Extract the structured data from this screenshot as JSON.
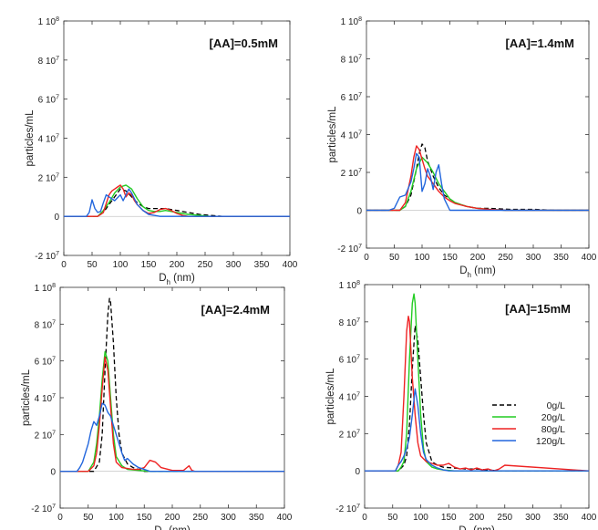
{
  "chart_data": [
    {
      "type": "line",
      "label": "[AA]=0.5mM",
      "xlabel": "D_h (nm)",
      "ylabel": "particles/mL",
      "xlim": [
        0,
        400
      ],
      "ylim": [
        -20000000,
        100000000
      ],
      "xticks": [
        0,
        50,
        100,
        150,
        200,
        250,
        300,
        350,
        400
      ],
      "ytick_labels": [
        "1 10^8",
        "8 10^7",
        "6 10^7",
        "4 10^7",
        "2 10^7",
        "0",
        "-2 10^7"
      ],
      "series": [
        {
          "name": "0g/L",
          "color": "#000000",
          "dash": true,
          "x": [
            0,
            60,
            70,
            80,
            90,
            100,
            110,
            120,
            130,
            140,
            150,
            160,
            170,
            180,
            200,
            220,
            240,
            260,
            280,
            400
          ],
          "y": [
            0,
            0,
            2000000,
            6000000,
            10000000,
            14000000,
            13000000,
            10000000,
            7000000,
            5000000,
            4000000,
            4000000,
            4000000,
            4000000,
            3000000,
            2000000,
            1000000,
            500000,
            0,
            0
          ]
        },
        {
          "name": "20g/L",
          "color": "#22cc22",
          "dash": false,
          "x": [
            0,
            60,
            70,
            80,
            90,
            100,
            110,
            120,
            130,
            140,
            150,
            160,
            170,
            180,
            190,
            200,
            210,
            220,
            240,
            260,
            400
          ],
          "y": [
            0,
            0,
            3000000,
            7000000,
            12000000,
            15000000,
            16000000,
            14000000,
            9000000,
            5000000,
            3000000,
            2500000,
            2500000,
            3000000,
            2500000,
            2000000,
            1500000,
            1000000,
            500000,
            0,
            0
          ]
        },
        {
          "name": "80g/L",
          "color": "#ee2222",
          "dash": false,
          "x": [
            0,
            60,
            70,
            80,
            85,
            90,
            95,
            100,
            105,
            110,
            115,
            120,
            125,
            130,
            140,
            150,
            160,
            170,
            180,
            190,
            200,
            210,
            220,
            400
          ],
          "y": [
            0,
            0,
            2000000,
            11000000,
            13000000,
            14000000,
            15000000,
            16000000,
            14000000,
            10000000,
            12000000,
            11000000,
            8000000,
            6000000,
            3000000,
            1500000,
            2000000,
            3500000,
            4000000,
            3000000,
            1500000,
            500000,
            0,
            0
          ]
        },
        {
          "name": "120g/L",
          "color": "#2266dd",
          "dash": false,
          "x": [
            0,
            40,
            45,
            50,
            55,
            60,
            65,
            70,
            75,
            80,
            90,
            100,
            105,
            110,
            115,
            120,
            125,
            130,
            140,
            150,
            160,
            170,
            400
          ],
          "y": [
            0,
            0,
            2000000,
            8500000,
            4000000,
            2000000,
            2500000,
            7000000,
            11000000,
            10000000,
            8000000,
            11000000,
            8000000,
            11000000,
            14000000,
            12000000,
            9000000,
            6000000,
            3000000,
            1000000,
            500000,
            0,
            0
          ]
        }
      ]
    },
    {
      "type": "line",
      "label": "[AA]=1.4mM",
      "xlabel": "D_h (nm)",
      "ylabel": "particles/mL",
      "xlim": [
        0,
        400
      ],
      "ylim": [
        -20000000,
        100000000
      ],
      "xticks": [
        0,
        50,
        100,
        150,
        200,
        250,
        300,
        350,
        400
      ],
      "ytick_labels": [
        "1 10^8",
        "8 10^7",
        "6 10^7",
        "4 10^7",
        "2 10^7",
        "0",
        "-2 10^7"
      ],
      "series": [
        {
          "name": "0g/L",
          "color": "#000000",
          "dash": true,
          "x": [
            0,
            60,
            70,
            80,
            90,
            95,
            100,
            105,
            110,
            120,
            130,
            140,
            150,
            160,
            180,
            200,
            220,
            260,
            300,
            340,
            400
          ],
          "y": [
            0,
            0,
            2000000,
            8000000,
            22000000,
            30000000,
            35000000,
            33000000,
            26000000,
            18000000,
            12000000,
            8000000,
            6000000,
            4000000,
            2000000,
            1000000,
            1000000,
            500000,
            500000,
            0,
            0
          ]
        },
        {
          "name": "20g/L",
          "color": "#22cc22",
          "dash": false,
          "x": [
            0,
            60,
            70,
            80,
            90,
            100,
            110,
            120,
            130,
            140,
            150,
            160,
            180,
            200,
            220,
            250,
            400
          ],
          "y": [
            0,
            0,
            2000000,
            10000000,
            22000000,
            28000000,
            25000000,
            20000000,
            14000000,
            10000000,
            6000000,
            4000000,
            2000000,
            1000000,
            500000,
            0,
            0
          ]
        },
        {
          "name": "80g/L",
          "color": "#ee2222",
          "dash": false,
          "x": [
            0,
            60,
            70,
            80,
            85,
            90,
            95,
            100,
            105,
            110,
            120,
            130,
            140,
            150,
            160,
            180,
            200,
            220,
            250,
            400
          ],
          "y": [
            0,
            0,
            4000000,
            18000000,
            28000000,
            34000000,
            32000000,
            27000000,
            22000000,
            18000000,
            14000000,
            10000000,
            7000000,
            5000000,
            3500000,
            2000000,
            1000000,
            500000,
            0,
            0
          ]
        },
        {
          "name": "120g/L",
          "color": "#2266dd",
          "dash": false,
          "x": [
            0,
            40,
            50,
            60,
            70,
            80,
            85,
            90,
            95,
            100,
            105,
            110,
            115,
            120,
            125,
            130,
            135,
            140,
            150,
            400
          ],
          "y": [
            0,
            0,
            1000000,
            7000000,
            8000000,
            15000000,
            22000000,
            30000000,
            28000000,
            10000000,
            14000000,
            22000000,
            18000000,
            11000000,
            20000000,
            24000000,
            14000000,
            6000000,
            0,
            0
          ]
        }
      ]
    },
    {
      "type": "line",
      "label": "[AA]=2.4mM",
      "xlabel": "D_h (nm)",
      "ylabel": "particles/mL",
      "xlim": [
        0,
        400
      ],
      "ylim": [
        -20000000,
        100000000
      ],
      "xticks": [
        0,
        50,
        100,
        150,
        200,
        250,
        300,
        350,
        400
      ],
      "ytick_labels": [
        "1 10^8",
        "8 10^7",
        "6 10^7",
        "4 10^7",
        "2 10^7",
        "0",
        "-2 10^7"
      ],
      "series": [
        {
          "name": "0g/L",
          "color": "#000000",
          "dash": true,
          "x": [
            0,
            60,
            70,
            75,
            80,
            85,
            88,
            90,
            95,
            100,
            105,
            110,
            120,
            130,
            140,
            150,
            400
          ],
          "y": [
            0,
            0,
            5000000,
            20000000,
            55000000,
            85000000,
            94000000,
            92000000,
            70000000,
            40000000,
            20000000,
            10000000,
            4000000,
            2000000,
            1000000,
            0,
            0
          ]
        },
        {
          "name": "20g/L",
          "color": "#22cc22",
          "dash": false,
          "x": [
            0,
            50,
            60,
            65,
            70,
            75,
            80,
            85,
            90,
            95,
            100,
            110,
            120,
            140,
            160,
            400
          ],
          "y": [
            0,
            0,
            5000000,
            15000000,
            30000000,
            50000000,
            65000000,
            60000000,
            40000000,
            20000000,
            8000000,
            3000000,
            1000000,
            500000,
            0,
            0
          ]
        },
        {
          "name": "80g/L",
          "color": "#ee2222",
          "dash": false,
          "x": [
            0,
            50,
            60,
            65,
            70,
            75,
            80,
            85,
            90,
            95,
            100,
            110,
            120,
            130,
            140,
            150,
            160,
            170,
            180,
            200,
            220,
            230,
            235,
            240,
            400
          ],
          "y": [
            0,
            0,
            3000000,
            10000000,
            25000000,
            45000000,
            62000000,
            55000000,
            35000000,
            15000000,
            5000000,
            2000000,
            1500000,
            1000000,
            1000000,
            2000000,
            6000000,
            5000000,
            2000000,
            500000,
            500000,
            3000000,
            500000,
            0,
            0
          ]
        },
        {
          "name": "120g/L",
          "color": "#2266dd",
          "dash": false,
          "x": [
            0,
            30,
            35,
            40,
            45,
            50,
            55,
            60,
            65,
            70,
            75,
            80,
            85,
            90,
            95,
            100,
            105,
            110,
            115,
            120,
            130,
            140,
            150,
            160,
            400
          ],
          "y": [
            0,
            0,
            2000000,
            5000000,
            10000000,
            15000000,
            22000000,
            27000000,
            25000000,
            30000000,
            37000000,
            36000000,
            32000000,
            30000000,
            25000000,
            20000000,
            15000000,
            10000000,
            6000000,
            7000000,
            4000000,
            2000000,
            1000000,
            0,
            0
          ]
        }
      ]
    },
    {
      "type": "line",
      "label": "[AA]=15mM",
      "xlabel": "D_h (nm)",
      "ylabel": "particles/mL",
      "xlim": [
        0,
        400
      ],
      "ylim": [
        -20000000,
        100000000
      ],
      "xticks": [
        0,
        50,
        100,
        150,
        200,
        250,
        300,
        350,
        400
      ],
      "ytick_labels": [
        "1 10^8",
        "8 10^7",
        "6 10^7",
        "4 10^7",
        "2 10^7",
        "0",
        "-2 10^7"
      ],
      "legend": [
        "0g/L",
        "20g/L",
        "80g/L",
        "120g/L"
      ],
      "legend_position": "right",
      "series": [
        {
          "name": "0g/L",
          "color": "#000000",
          "dash": true,
          "x": [
            0,
            60,
            70,
            75,
            80,
            85,
            90,
            95,
            100,
            105,
            110,
            120,
            130,
            140,
            160,
            180,
            200,
            220,
            240,
            400
          ],
          "y": [
            0,
            0,
            3000000,
            8000000,
            25000000,
            55000000,
            78000000,
            70000000,
            50000000,
            30000000,
            15000000,
            5000000,
            3000000,
            2000000,
            1500000,
            1000000,
            1000000,
            500000,
            0,
            0
          ]
        },
        {
          "name": "20g/L",
          "color": "#22cc22",
          "dash": false,
          "x": [
            0,
            60,
            65,
            70,
            75,
            80,
            85,
            88,
            90,
            95,
            100,
            105,
            110,
            120,
            130,
            140,
            160,
            400
          ],
          "y": [
            0,
            0,
            2000000,
            5000000,
            20000000,
            60000000,
            90000000,
            95000000,
            90000000,
            60000000,
            30000000,
            12000000,
            5000000,
            2000000,
            1000000,
            500000,
            0,
            0
          ]
        },
        {
          "name": "80g/L",
          "color": "#ee2222",
          "dash": false,
          "x": [
            0,
            55,
            60,
            65,
            70,
            75,
            78,
            80,
            85,
            90,
            95,
            100,
            110,
            120,
            130,
            140,
            150,
            160,
            170,
            180,
            190,
            200,
            210,
            220,
            230,
            240,
            250,
            400
          ],
          "y": [
            0,
            0,
            3000000,
            10000000,
            40000000,
            75000000,
            83000000,
            80000000,
            50000000,
            30000000,
            15000000,
            8000000,
            5000000,
            4000000,
            3000000,
            3000000,
            4000000,
            2000000,
            1000000,
            1500000,
            500000,
            1500000,
            500000,
            1000000,
            0,
            1000000,
            3000000,
            0
          ]
        },
        {
          "name": "120g/L",
          "color": "#2266dd",
          "dash": false,
          "x": [
            0,
            55,
            60,
            65,
            70,
            75,
            80,
            85,
            90,
            95,
            100,
            105,
            110,
            120,
            130,
            140,
            150,
            400
          ],
          "y": [
            0,
            0,
            3000000,
            5000000,
            8000000,
            12000000,
            18000000,
            30000000,
            44000000,
            35000000,
            20000000,
            10000000,
            6000000,
            3000000,
            1500000,
            500000,
            0,
            0
          ]
        }
      ]
    }
  ]
}
